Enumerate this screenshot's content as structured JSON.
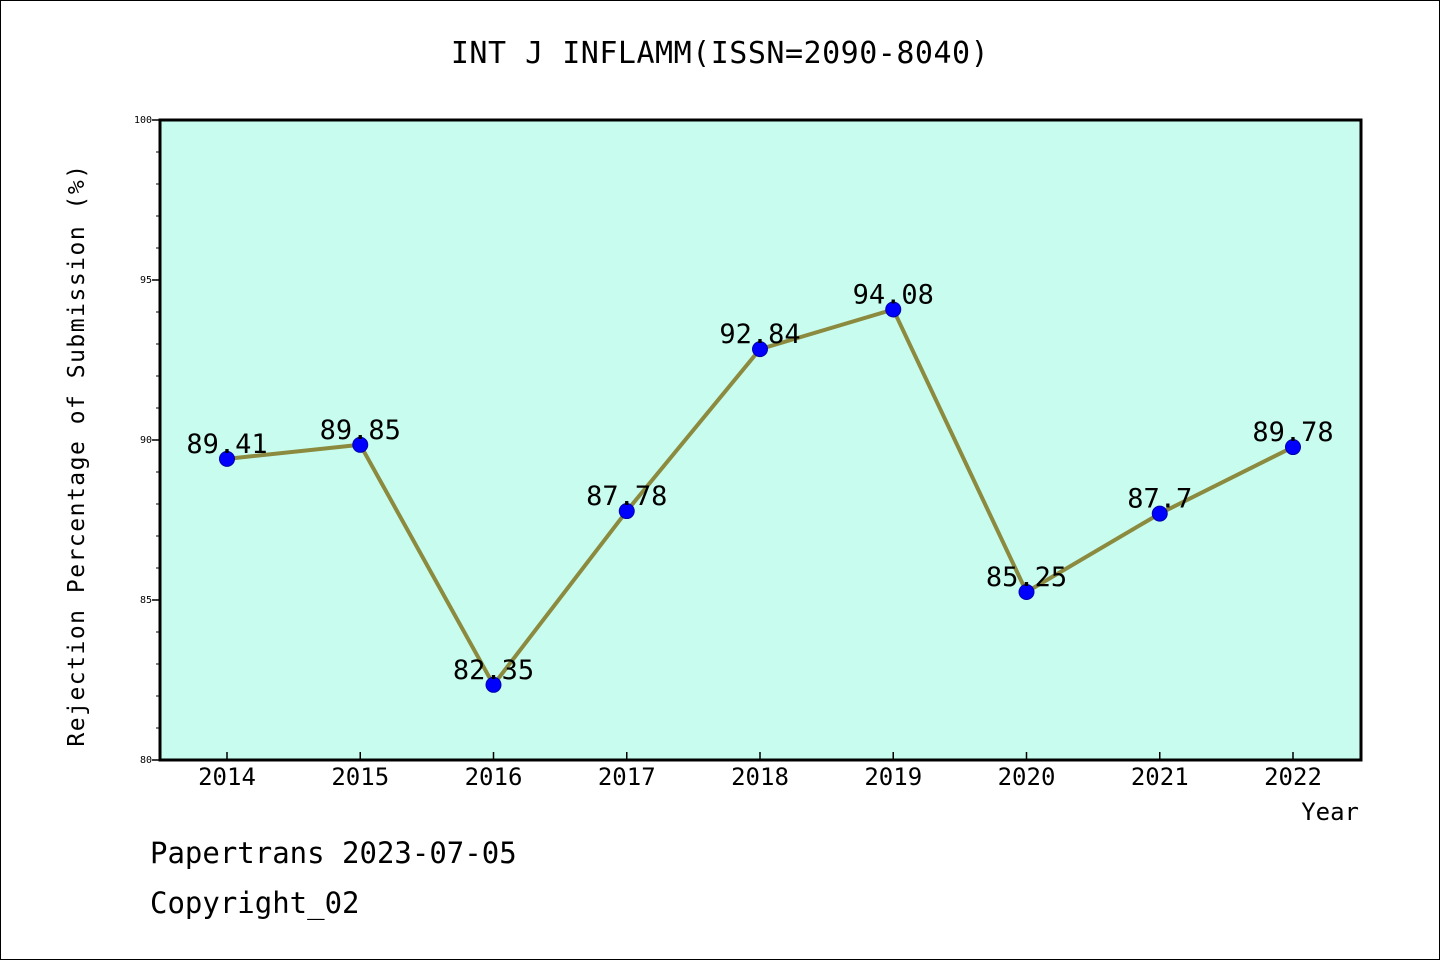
{
  "chart_data": {
    "type": "line",
    "title": "INT J INFLAMM(ISSN=2090-8040)",
    "xlabel": "Year",
    "ylabel": "Rejection Percentage of Submission (%)",
    "categories": [
      "2014",
      "2015",
      "2016",
      "2017",
      "2018",
      "2019",
      "2020",
      "2021",
      "2022"
    ],
    "values": [
      89.41,
      89.85,
      82.35,
      87.78,
      92.84,
      94.08,
      85.25,
      87.7,
      89.78
    ],
    "data_labels": [
      "89.41",
      "89.85",
      "82.35",
      "87.78",
      "92.84",
      "94.08",
      "85.25",
      "87.7",
      "89.78"
    ],
    "ylim": [
      80,
      100
    ],
    "yticks": [
      80,
      85,
      90,
      95,
      100
    ],
    "grid": false,
    "colors": {
      "plot_background": "#c8fcee",
      "line": "#8b8a3e",
      "marker": "#0000ff",
      "marker_edge": "#0000aa"
    }
  },
  "footer": {
    "line1": "Papertrans 2023-07-05",
    "line2": "Copyright_02"
  }
}
